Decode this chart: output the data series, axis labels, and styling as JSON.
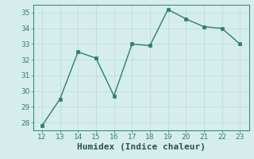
{
  "x": [
    12,
    13,
    14,
    15,
    16,
    17,
    18,
    19,
    20,
    21,
    22,
    23
  ],
  "y": [
    27.8,
    29.5,
    32.5,
    32.1,
    29.7,
    33.0,
    32.9,
    35.2,
    34.6,
    34.1,
    34.0,
    33.0
  ],
  "line_color": "#2E7D72",
  "marker": "s",
  "marker_size": 2.5,
  "xlabel": "Humidex (Indice chaleur)",
  "xlim": [
    11.5,
    23.5
  ],
  "ylim": [
    27.5,
    35.5
  ],
  "yticks": [
    28,
    29,
    30,
    31,
    32,
    33,
    34,
    35
  ],
  "xticks": [
    12,
    13,
    14,
    15,
    16,
    17,
    18,
    19,
    20,
    21,
    22,
    23
  ],
  "bg_color": "#d5eeed",
  "grid_color": "#c0dada",
  "tick_fontsize": 6.5,
  "xlabel_fontsize": 8,
  "linewidth": 1.0
}
